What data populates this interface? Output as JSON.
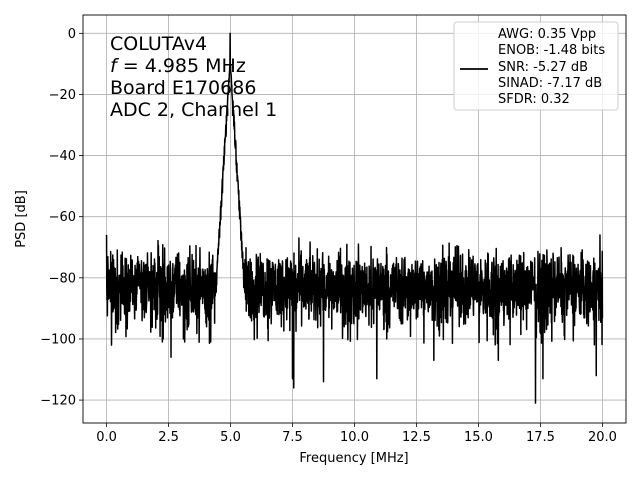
{
  "chart_data": {
    "type": "line",
    "title": "",
    "xlabel": "Frequency [MHz]",
    "ylabel": "PSD [dB]",
    "xlim": [
      -0.95,
      20.95
    ],
    "ylim": [
      -127.5,
      6
    ],
    "grid": true,
    "xticks": [
      0.0,
      2.5,
      5.0,
      7.5,
      10.0,
      12.5,
      15.0,
      17.5,
      20.0
    ],
    "xtick_labels": [
      "0.0",
      "2.5",
      "5.0",
      "7.5",
      "10.0",
      "12.5",
      "15.0",
      "17.5",
      "20.0"
    ],
    "yticks": [
      0,
      -20,
      -40,
      -60,
      -80,
      -100,
      -120
    ],
    "ytick_labels": [
      "0",
      "−20",
      "−40",
      "−60",
      "−80",
      "−100",
      "−120"
    ],
    "annotation": {
      "line1": "COLUTAv4",
      "line2_var": "f",
      "line2_rest": " = 4.985 MHz",
      "line3": "Board E170686",
      "line4": "ADC 2, Channel 1"
    },
    "legend": {
      "placement": "top-right",
      "entries": [
        "AWG: 0.35 Vpp",
        "ENOB: -1.48 bits",
        "SNR: -5.27 dB",
        "SINAD: -7.17 dB",
        "SFDR: 0.32"
      ]
    },
    "series": [
      {
        "color": "#000000",
        "spectrum": {
          "x_start": 0.0,
          "x_end": 20.0,
          "noise_floor_db": -83,
          "noise_min_db": -102,
          "noise_max_db": -65,
          "peak_freq_mhz": 4.985,
          "peak_db": 0.0,
          "spurs": [
            {
              "x": 0.0,
              "y": -66
            },
            {
              "x": 0.2,
              "y": -102
            },
            {
              "x": 2.6,
              "y": -106
            },
            {
              "x": 3.1,
              "y": -100
            },
            {
              "x": 4.2,
              "y": -101
            },
            {
              "x": 7.5,
              "y": -113
            },
            {
              "x": 7.55,
              "y": -116
            },
            {
              "x": 8.75,
              "y": -114
            },
            {
              "x": 10.9,
              "y": -113
            },
            {
              "x": 13.2,
              "y": -107
            },
            {
              "x": 15.8,
              "y": -107
            },
            {
              "x": 17.3,
              "y": -121
            },
            {
              "x": 17.6,
              "y": -113
            },
            {
              "x": 19.75,
              "y": -112
            },
            {
              "x": 19.9,
              "y": -66
            }
          ]
        }
      }
    ]
  }
}
